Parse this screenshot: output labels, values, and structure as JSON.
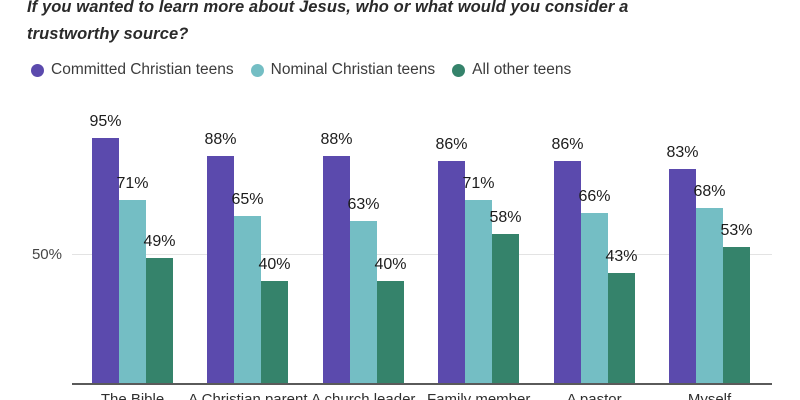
{
  "title": {
    "line1": "If you wanted to learn more about Jesus, who or what would you consider a",
    "line2": "trustworthy source?"
  },
  "chart_data": {
    "type": "bar",
    "title": "If you wanted to learn more about Jesus, who or what would you consider a trustworthy source?",
    "categories": [
      "The Bible",
      "A Christian parent",
      "A church leader",
      "Family member",
      "A pastor",
      "Myself"
    ],
    "series": [
      {
        "name": "Committed Christian teens",
        "color": "#5b4aad",
        "values": [
          95,
          88,
          88,
          86,
          86,
          83
        ]
      },
      {
        "name": "Nominal Christian teens",
        "color": "#74bec4",
        "values": [
          71,
          65,
          63,
          71,
          66,
          68
        ]
      },
      {
        "name": "All other teens",
        "color": "#35836b",
        "values": [
          49,
          40,
          40,
          58,
          43,
          53
        ]
      }
    ],
    "value_suffix": "%",
    "data_labels": "shown above each bar",
    "y_axis": {
      "ticks": [
        "50%"
      ],
      "tick_values": [
        50
      ],
      "ylim": [
        0,
        100
      ],
      "grid": "single light horizontal gridline at 50%"
    },
    "legend_position": "top-left, horizontal",
    "x_axis_note": "category labels clipped at bottom edge of image"
  },
  "colors": {
    "background": "#ffffff",
    "gridline": "#e3e3e3",
    "axis_line": "#5a5a5a",
    "title_text": "#2a2a2a",
    "label_text": "#1c1c1c"
  }
}
